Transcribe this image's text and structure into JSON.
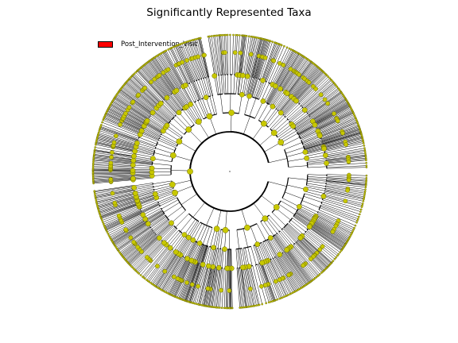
{
  "title": "Significantly Represented Taxa",
  "legend": {
    "label": "Post_Intervention_Visit",
    "color": "#ff0000"
  },
  "colors": {
    "edge": "#000000",
    "node_fill": "#c8c800",
    "node_stroke": "#6b6b00",
    "tip_fill": "#d4d400"
  }
}
